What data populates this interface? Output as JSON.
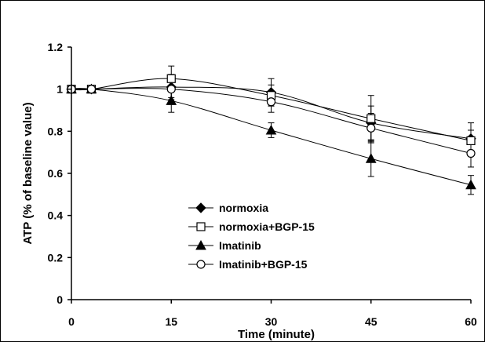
{
  "chart_data": {
    "type": "line",
    "title": "",
    "xlabel": "Time (minute)",
    "ylabel": "ATP (% of baseline value)",
    "xlim": [
      0,
      60
    ],
    "ylim": [
      0,
      1.2
    ],
    "xticks": [
      0,
      15,
      30,
      45,
      60
    ],
    "yticks": [
      0,
      0.2,
      0.4,
      0.6,
      0.8,
      1,
      1.2
    ],
    "xtick_labels": [
      "0",
      "15",
      "30",
      "45",
      "60"
    ],
    "ytick_labels": [
      "0",
      "0.2",
      "0.4",
      "0.6",
      "0.8",
      "1",
      "1.2"
    ],
    "grid": false,
    "legend_position": "center-left",
    "series": [
      {
        "name": "normoxia",
        "marker": "diamond-filled",
        "x": [
          0,
          3,
          15,
          30,
          45,
          60
        ],
        "y": [
          1,
          1,
          1.01,
          0.985,
          0.84,
          0.765
        ],
        "err": [
          0,
          0,
          0.06,
          0.065,
          0.08,
          0.075
        ]
      },
      {
        "name": "normoxia+BGP-15",
        "marker": "square-open",
        "x": [
          0,
          3,
          15,
          30,
          45,
          60
        ],
        "y": [
          1,
          1,
          1.05,
          0.97,
          0.86,
          0.755
        ],
        "err": [
          0,
          0,
          0.06,
          0.05,
          0.11,
          0.05
        ]
      },
      {
        "name": "Imatinib",
        "marker": "triangle-filled",
        "x": [
          0,
          3,
          15,
          30,
          45,
          60
        ],
        "y": [
          1,
          1,
          0.945,
          0.805,
          0.67,
          0.545
        ],
        "err": [
          0,
          0,
          0.055,
          0.035,
          0.085,
          0.045
        ]
      },
      {
        "name": "Imatinib+BGP-15",
        "marker": "circle-open",
        "x": [
          0,
          3,
          15,
          30,
          45,
          60
        ],
        "y": [
          1,
          1,
          1.0,
          0.94,
          0.815,
          0.695
        ],
        "err": [
          0,
          0,
          0.04,
          0.05,
          0.07,
          0.065
        ]
      }
    ]
  }
}
